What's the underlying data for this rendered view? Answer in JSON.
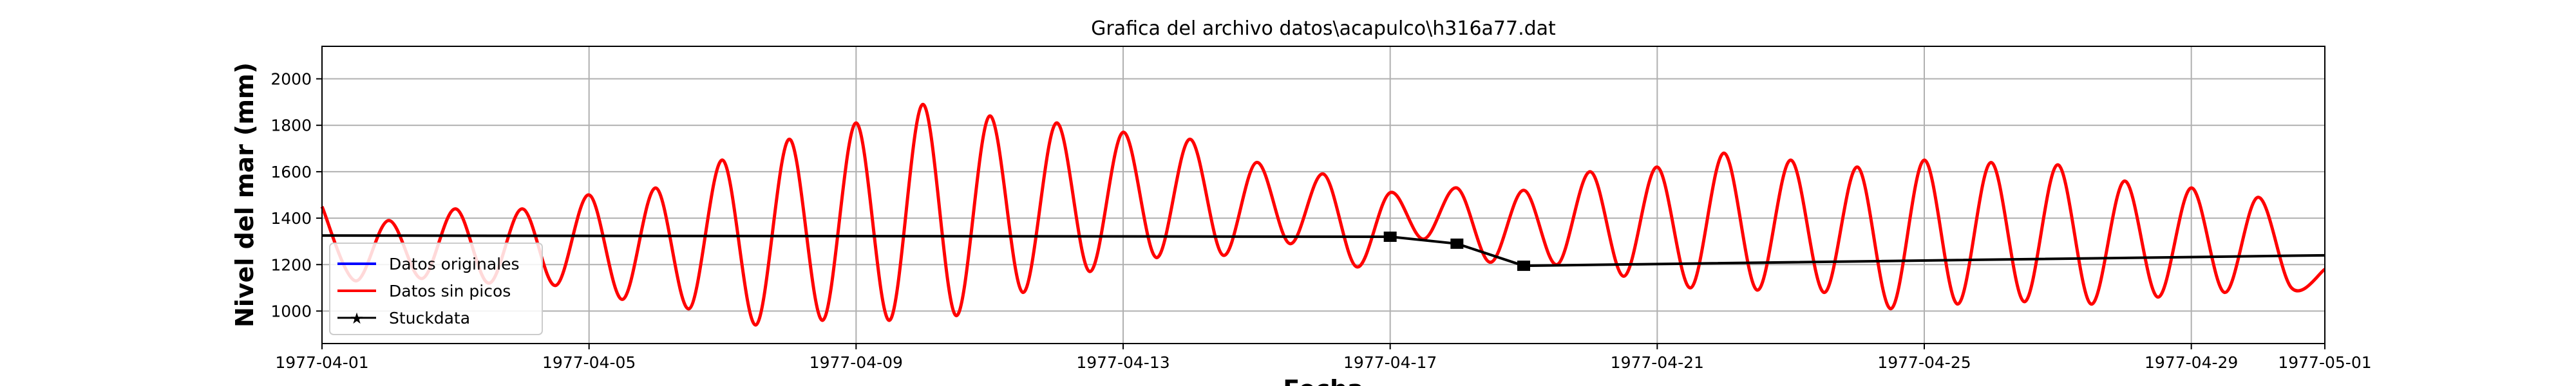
{
  "chart_data": {
    "type": "line",
    "title": "Grafica del archivo datos\\acapulco\\h316a77.dat",
    "xlabel": "Fecha",
    "ylabel": "Nivel del mar (mm)",
    "xlim": [
      "1977-04-01",
      "1977-05-01"
    ],
    "ylim": [
      860,
      2140
    ],
    "grid": true,
    "legend_position": "lower-left",
    "x_ticks": [
      "1977-04-01",
      "1977-04-05",
      "1977-04-09",
      "1977-04-13",
      "1977-04-17",
      "1977-04-21",
      "1977-04-25",
      "1977-04-29",
      "1977-05-01"
    ],
    "y_ticks": [
      1000,
      1200,
      1400,
      1600,
      1800,
      2000
    ],
    "series": [
      {
        "name": "Datos originales",
        "color": "#0000ff",
        "x": [
          "1977-04-01",
          "1977-05-01"
        ],
        "y": [
          null,
          null
        ]
      },
      {
        "name": "Datos sin picos",
        "color": "#ff0000",
        "x": [
          "1977-04-01",
          "1977-04-01",
          "1977-04-02",
          "1977-04-02",
          "1977-04-03",
          "1977-04-03",
          "1977-04-04",
          "1977-04-04",
          "1977-04-05",
          "1977-04-05",
          "1977-04-06",
          "1977-04-06",
          "1977-04-07",
          "1977-04-07",
          "1977-04-08",
          "1977-04-08",
          "1977-04-09",
          "1977-04-09",
          "1977-04-10",
          "1977-04-10",
          "1977-04-11",
          "1977-04-11",
          "1977-04-12",
          "1977-04-12",
          "1977-04-13",
          "1977-04-13",
          "1977-04-14",
          "1977-04-14",
          "1977-04-15",
          "1977-04-15",
          "1977-04-16",
          "1977-04-16",
          "1977-04-17",
          "1977-04-17",
          "1977-04-18",
          "1977-04-18",
          "1977-04-19",
          "1977-04-19",
          "1977-04-20",
          "1977-04-20",
          "1977-04-21",
          "1977-04-21",
          "1977-04-22",
          "1977-04-22",
          "1977-04-23",
          "1977-04-23",
          "1977-04-24",
          "1977-04-24",
          "1977-04-25",
          "1977-04-25",
          "1977-04-26",
          "1977-04-26",
          "1977-04-27",
          "1977-04-27",
          "1977-04-28",
          "1977-04-28",
          "1977-04-29",
          "1977-04-29",
          "1977-04-30",
          "1977-04-30",
          "1977-05-01"
        ],
        "y": [
          1450,
          1130,
          1390,
          1140,
          1440,
          1120,
          1440,
          1110,
          1500,
          1050,
          1530,
          1010,
          1650,
          940,
          1740,
          960,
          1810,
          960,
          1890,
          980,
          1840,
          1080,
          1810,
          1170,
          1770,
          1230,
          1740,
          1240,
          1640,
          1290,
          1590,
          1190,
          1510,
          1310,
          1530,
          1210,
          1520,
          1200,
          1600,
          1150,
          1620,
          1100,
          1680,
          1090,
          1650,
          1080,
          1620,
          1010,
          1650,
          1030,
          1640,
          1040,
          1630,
          1030,
          1560,
          1060,
          1530,
          1080,
          1490,
          1100,
          1180
        ]
      },
      {
        "name": "Stuckdata",
        "color": "#000000",
        "x": [
          "1977-04-01",
          "1977-04-17",
          "1977-04-18",
          "1977-04-19",
          "1977-05-01"
        ],
        "y": [
          1325,
          1320,
          1290,
          1195,
          1240
        ]
      }
    ],
    "stuck_markers": {
      "x": [
        "1977-04-17",
        "1977-04-18",
        "1977-04-19"
      ],
      "y": [
        1320,
        1290,
        1195
      ]
    }
  }
}
